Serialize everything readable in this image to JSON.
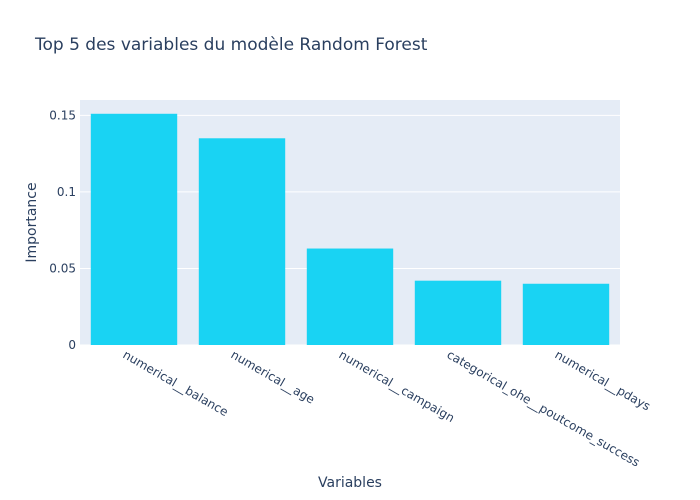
{
  "chart_data": {
    "type": "bar",
    "title": "Top 5 des variables du modèle Random Forest",
    "xlabel": "Variables",
    "ylabel": "Importance",
    "categories": [
      "numerical__balance",
      "numerical__age",
      "numerical__campaign",
      "categorical_ohe__poutcome_success",
      "numerical__pdays"
    ],
    "values": [
      0.151,
      0.135,
      0.063,
      0.042,
      0.04
    ],
    "ylim": [
      0,
      0.16
    ],
    "yticks": [
      0,
      0.05,
      0.1,
      0.15
    ],
    "ytick_labels": [
      "0",
      "0.05",
      "0.1",
      "0.15"
    ],
    "grid": true,
    "colors": {
      "bar": "#19d3f3",
      "plot_background": "#e5ecf6",
      "grid": "#ffffff",
      "text": "#2a3f5f"
    }
  }
}
